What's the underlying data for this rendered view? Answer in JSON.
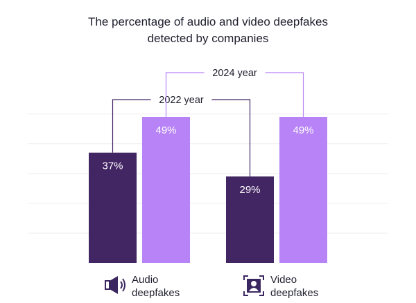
{
  "title_lines": [
    "The percentage of audio and video deepfakes",
    "detected by companies"
  ],
  "chart_data": {
    "type": "bar",
    "title": "The percentage of audio and video deepfakes detected by companies",
    "categories": [
      "Audio deepfakes",
      "Video deepfakes"
    ],
    "series": [
      {
        "name": "2022 year",
        "values": [
          37,
          29
        ],
        "labels": [
          "37%",
          "29%"
        ]
      },
      {
        "name": "2024 year",
        "values": [
          49,
          49
        ],
        "labels": [
          "49%",
          "49%"
        ]
      }
    ],
    "ylim": [
      0,
      60
    ],
    "grid": true,
    "xlabel": "",
    "ylabel": ""
  },
  "colors": {
    "series_2022": "#422563",
    "series_2024": "#b783f6",
    "text": "#1f1f2e",
    "grid": "#eeeeee"
  },
  "category_labels": [
    {
      "line1": "Audio",
      "line2": "deepfakes",
      "icon": "speaker-icon"
    },
    {
      "line1": "Video",
      "line2": "deepfakes",
      "icon": "video-portrait-icon"
    }
  ]
}
